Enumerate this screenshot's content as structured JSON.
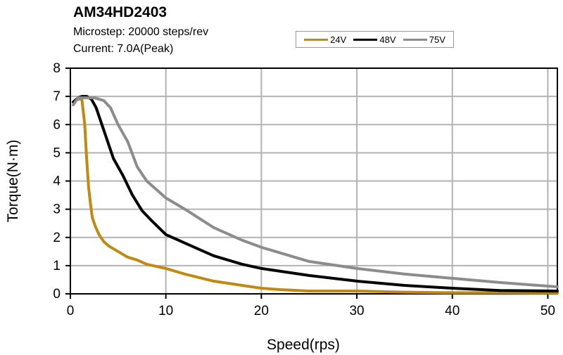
{
  "chart_data": {
    "type": "line",
    "title": "AM34HD2403",
    "subtitle_lines": [
      "Microstep: 20000 steps/rev",
      "Current: 7.0A(Peak)"
    ],
    "xlabel": "Speed(rps)",
    "ylabel": "Torque(N·m)",
    "xlim": [
      0,
      51
    ],
    "ylim": [
      0,
      8
    ],
    "xticks": [
      0,
      10,
      20,
      30,
      40,
      50
    ],
    "yticks": [
      0,
      1,
      2,
      3,
      4,
      5,
      6,
      7,
      8
    ],
    "grid": true,
    "legend_position": "top-center",
    "series": [
      {
        "name": "24V",
        "color": "#C08A12",
        "x": [
          0.3,
          0.8,
          1.2,
          1.5,
          1.7,
          1.9,
          2.1,
          2.3,
          2.6,
          3.0,
          3.5,
          4.0,
          5.0,
          6.0,
          7.0,
          8.0,
          10.0,
          12.0,
          15.0,
          18.0,
          20.0,
          22.0,
          25.0,
          28.0,
          30.0,
          35.0,
          40.0,
          45.0,
          51.0
        ],
        "y": [
          6.8,
          6.9,
          6.9,
          6.0,
          4.8,
          3.8,
          3.2,
          2.7,
          2.4,
          2.1,
          1.85,
          1.7,
          1.5,
          1.3,
          1.2,
          1.05,
          0.9,
          0.7,
          0.45,
          0.3,
          0.2,
          0.15,
          0.1,
          0.1,
          0.1,
          0.06,
          0.04,
          0.04,
          0.03
        ]
      },
      {
        "name": "48V",
        "color": "#000000",
        "x": [
          0.3,
          0.8,
          1.2,
          1.7,
          2.2,
          2.7,
          3.2,
          3.8,
          4.5,
          5.5,
          6.5,
          7.5,
          8.5,
          10.0,
          12.0,
          15.0,
          18.0,
          20.0,
          25.0,
          30.0,
          35.0,
          40.0,
          45.0,
          51.0
        ],
        "y": [
          6.8,
          6.95,
          7.0,
          7.0,
          6.9,
          6.6,
          6.1,
          5.5,
          4.8,
          4.2,
          3.5,
          2.95,
          2.6,
          2.1,
          1.8,
          1.35,
          1.05,
          0.9,
          0.65,
          0.45,
          0.3,
          0.2,
          0.12,
          0.1
        ]
      },
      {
        "name": "75V",
        "color": "#8C8C8C",
        "x": [
          0.3,
          0.8,
          1.5,
          2.5,
          3.5,
          4.2,
          5.0,
          6.0,
          7.0,
          8.0,
          9.0,
          10.0,
          12.0,
          15.0,
          18.0,
          20.0,
          25.0,
          30.0,
          35.0,
          40.0,
          45.0,
          51.0
        ],
        "y": [
          6.7,
          6.95,
          6.95,
          6.95,
          6.85,
          6.6,
          6.0,
          5.4,
          4.5,
          4.0,
          3.7,
          3.4,
          3.0,
          2.35,
          1.9,
          1.65,
          1.15,
          0.9,
          0.7,
          0.55,
          0.4,
          0.25
        ]
      }
    ]
  }
}
